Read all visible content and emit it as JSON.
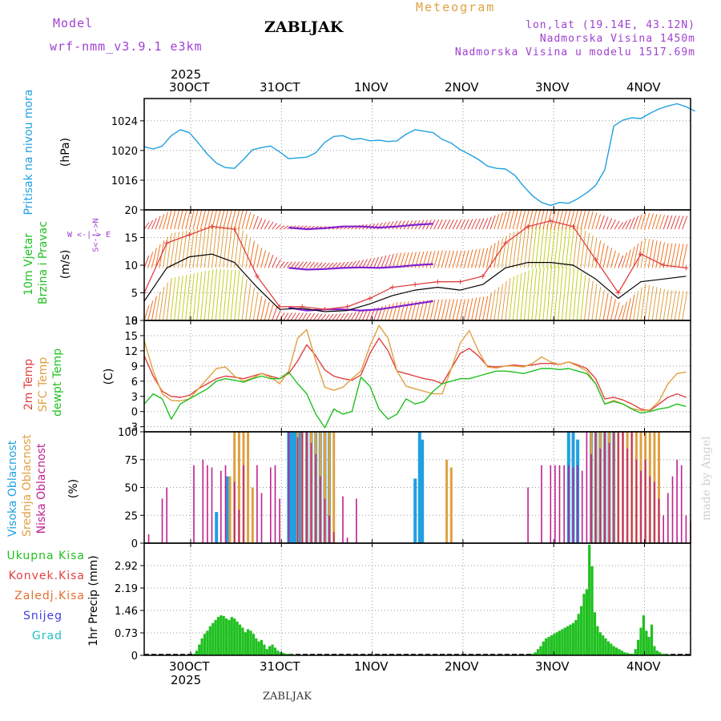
{
  "header": {
    "model_label": "Model",
    "model_name": "wrf-nmm_v3.9.1 e3km",
    "title": "ZABLJAK",
    "meteogram": "Meteogram",
    "lonlat": "lon,lat (19.14E, 43.12N)",
    "altitude": "Nadmorska Visina 1450m",
    "model_altitude": "Nadmorska Visina u modelu 1517.69m"
  },
  "footer": {
    "station": "ZABLJAK",
    "credit": "made by Angel"
  },
  "dates": {
    "labels": [
      "30OCT",
      "31OCT",
      "1NOV",
      "2NOV",
      "3NOV",
      "4NOV"
    ],
    "year": "2025"
  },
  "labels": {
    "p1_main": "Pritisak na nivou mora",
    "p1_unit": "(hPa)",
    "p2_main1": "10m Vjetar",
    "p2_main2": "Brzina i Pravac",
    "p2_unit": "(m/s)",
    "p2_dir": "W <-|-> E",
    "p2_dir2": "S<-|->N",
    "p3_l1": "2m Temp",
    "p3_l2": "SFC Temp",
    "p3_l3": "dewpt Temp",
    "p3_unit": "(C)",
    "p4_l1": "Visoka Oblacnost",
    "p4_l2": "Srednja Oblacnost",
    "p4_l3": "Niska Oblacnost",
    "p4_unit": "(%)",
    "p5_items": [
      "Ukupna Kisa",
      "Konvek.Kisa",
      "Zaledj.Kisa",
      "Snijeg",
      "Grad"
    ],
    "p5_unit": "1hr Precip (mm)"
  },
  "colors": {
    "label_blue": "#20a0e0",
    "label_green": "#20c020",
    "label_red": "#e04040",
    "label_orange": "#e0a040",
    "label_purple": "#a040d0",
    "label_magenta": "#c02090",
    "label_snow": "#4040e0",
    "label_hail": "#20c0c0"
  },
  "chart_data": [
    {
      "type": "line",
      "title": "Pritisak na nivou mora",
      "ylabel": "(hPa)",
      "ylim": [
        1012,
        1027
      ],
      "yticks": [
        "1016",
        "1020",
        "1024"
      ],
      "x_days": [
        0,
        0.1,
        0.2,
        0.3,
        0.4,
        0.5,
        0.6,
        0.7,
        0.8,
        0.9,
        1.0,
        1.1,
        1.2,
        1.3,
        1.4,
        1.5,
        1.6,
        1.7,
        1.8,
        1.9,
        2.0,
        2.1,
        2.2,
        2.3,
        2.4,
        2.5,
        2.6,
        2.7,
        2.8,
        2.9,
        3.0,
        3.1,
        3.2,
        3.3,
        3.4,
        3.5,
        3.6,
        3.7,
        3.8,
        3.9,
        4.0,
        4.1,
        4.2,
        4.3,
        4.4,
        4.5,
        4.6,
        4.7,
        4.8,
        4.9,
        5.0,
        5.1,
        5.2,
        5.3,
        5.4,
        5.5,
        5.6,
        5.7,
        5.8,
        5.9,
        6.0,
        6.1
      ],
      "series": [
        {
          "name": "MSLP",
          "color": "#20a0e0",
          "values": [
            1020.5,
            1020.2,
            1020.6,
            1022,
            1022.8,
            1022.4,
            1021,
            1019.5,
            1018.3,
            1017.7,
            1017.6,
            1018.8,
            1020.1,
            1020.4,
            1020.6,
            1019.8,
            1018.9,
            1019.0,
            1019.1,
            1019.7,
            1021.1,
            1021.9,
            1022.0,
            1021.5,
            1021.6,
            1021.3,
            1021.4,
            1021.2,
            1021.3,
            1022.2,
            1022.8,
            1022.6,
            1022.4,
            1021.5,
            1021.0,
            1020.1,
            1019.5,
            1018.8,
            1017.9,
            1017.6,
            1017.5,
            1016.7,
            1015.2,
            1013.9,
            1013.0,
            1012.6,
            1013.0,
            1012.9,
            1013.5,
            1014.3,
            1015.3,
            1017.4,
            1023.3,
            1024.1,
            1024.4,
            1024.3,
            1025.0,
            1025.6,
            1026.0,
            1026.3,
            1025.9,
            1025.3
          ]
        }
      ]
    },
    {
      "type": "line",
      "title": "10m Vjetar Brzina i Pravac",
      "ylabel": "(m/s)",
      "ylim": [
        0,
        20
      ],
      "yticks": [
        "0",
        "5",
        "10",
        "15",
        "20"
      ],
      "x_days": [
        0,
        0.25,
        0.5,
        0.75,
        1.0,
        1.25,
        1.5,
        1.75,
        2.0,
        2.25,
        2.5,
        2.75,
        3.0,
        3.25,
        3.5,
        3.75,
        4.0,
        4.25,
        4.5,
        4.75,
        5.0,
        5.25,
        5.5,
        5.75,
        6.0
      ],
      "series": [
        {
          "name": "Mean wind",
          "color": "#000000",
          "values": [
            3.5,
            9.5,
            11.5,
            12.0,
            10.5,
            6.0,
            2.0,
            2.2,
            1.6,
            1.8,
            3.0,
            4.5,
            5.5,
            6.0,
            5.5,
            6.5,
            9.5,
            10.5,
            10.5,
            10.0,
            7.5,
            4.0,
            7.0,
            7.5,
            8.0
          ]
        },
        {
          "name": "Gust",
          "color": "#e04040",
          "values": [
            5.0,
            14.0,
            15.5,
            17.0,
            16.5,
            8.0,
            2.5,
            2.5,
            2.0,
            2.5,
            4.0,
            6.0,
            6.5,
            7.0,
            7.0,
            8.0,
            14.0,
            17.0,
            18.0,
            17.0,
            11.0,
            5.0,
            12.0,
            10.0,
            9.5
          ]
        },
        {
          "name": "Direction arrows",
          "color": "#8020d0",
          "values": []
        }
      ]
    },
    {
      "type": "line",
      "title": "Temperature",
      "ylabel": "(C)",
      "ylim": [
        -4,
        18
      ],
      "yticks": [
        "-3",
        "0",
        "3",
        "6",
        "9",
        "12",
        "15",
        "18"
      ],
      "x_days": [
        0,
        0.1,
        0.2,
        0.3,
        0.4,
        0.5,
        0.6,
        0.7,
        0.8,
        0.9,
        1.0,
        1.1,
        1.2,
        1.3,
        1.4,
        1.5,
        1.6,
        1.7,
        1.8,
        1.9,
        2.0,
        2.1,
        2.2,
        2.3,
        2.4,
        2.5,
        2.6,
        2.7,
        2.8,
        2.9,
        3.0,
        3.1,
        3.2,
        3.3,
        3.4,
        3.5,
        3.6,
        3.7,
        3.8,
        3.9,
        4.0,
        4.1,
        4.2,
        4.3,
        4.4,
        4.5,
        4.6,
        4.7,
        4.8,
        4.9,
        5.0,
        5.1,
        5.2,
        5.3,
        5.4,
        5.5,
        5.6,
        5.7,
        5.8,
        5.9,
        6.0
      ],
      "series": [
        {
          "name": "2m Temp",
          "color": "#e04040",
          "values": [
            11,
            7,
            4,
            3,
            2.8,
            3.2,
            4.5,
            5.5,
            6.5,
            7,
            6.8,
            6.5,
            7,
            7.5,
            7,
            6.5,
            7.5,
            10,
            13.2,
            11,
            8.2,
            7,
            6.5,
            6.2,
            7.2,
            11.5,
            14.5,
            12,
            8,
            7.5,
            7,
            6.5,
            6.2,
            5.5,
            8.5,
            11.5,
            12.5,
            11,
            9,
            8.8,
            9,
            9.2,
            9.0,
            9.2,
            9.5,
            9.5,
            9.3,
            9.8,
            9.2,
            8.5,
            6.5,
            2.5,
            2.8,
            2.3,
            1.5,
            0.5,
            0.2,
            1.5,
            2.8,
            3.5,
            2.8
          ]
        },
        {
          "name": "SFC Temp",
          "color": "#e0a040",
          "values": [
            14,
            8,
            3.5,
            2.2,
            2.1,
            2.5,
            4.5,
            6.5,
            8.5,
            8.8,
            7.0,
            6.0,
            6.6,
            7.5,
            6.8,
            5.5,
            8.0,
            14.5,
            16.2,
            10.0,
            4.8,
            4.2,
            4.8,
            6.5,
            8.0,
            13.0,
            17.0,
            14.5,
            8.0,
            5.0,
            4.5,
            4.0,
            3.5,
            3.5,
            8.5,
            13.5,
            16.0,
            12.0,
            8.8,
            8.6,
            9.0,
            9.0,
            8.8,
            9.5,
            10.8,
            9.8,
            9.3,
            9.8,
            9.0,
            8.0,
            5.5,
            1.5,
            2.2,
            1.5,
            0.6,
            0.2,
            0.3,
            2.0,
            5.5,
            7.5,
            7.8
          ]
        },
        {
          "name": "dewpt Temp",
          "color": "#20c020",
          "values": [
            1.5,
            3.5,
            2.5,
            -1.5,
            1.5,
            2.5,
            3.5,
            4.5,
            6,
            6.5,
            6.2,
            5.8,
            6.5,
            7,
            6.5,
            6.5,
            7.8,
            5.5,
            3.5,
            -0.5,
            -3.2,
            0.5,
            -0.5,
            0,
            6.8,
            5,
            0.5,
            -1.5,
            -0.5,
            2.5,
            1.5,
            2,
            4,
            5.5,
            6,
            6.5,
            6.5,
            7,
            7.5,
            8,
            8,
            7.8,
            7.5,
            8,
            8.5,
            8.5,
            8.3,
            8.5,
            8,
            7.5,
            5.5,
            1.5,
            2.0,
            1.5,
            0.5,
            -0.3,
            0.0,
            0.5,
            0.8,
            1.5,
            1.0
          ]
        }
      ]
    },
    {
      "type": "bar",
      "title": "Oblacnost",
      "ylabel": "(%)",
      "ylim": [
        0,
        100
      ],
      "yticks": [
        "0",
        "25",
        "50",
        "75",
        "100"
      ],
      "series": [
        {
          "name": "Visoka Oblacnost",
          "color": "#20a0e0",
          "x_days": [
            0.8,
            0.92,
            1.6,
            1.62,
            1.64,
            1.66,
            1.68,
            1.72,
            1.8,
            1.85,
            1.9,
            1.95,
            2.0,
            2.05,
            3.0,
            3.05,
            3.08,
            4.7,
            4.75,
            4.8,
            4.95,
            5.0,
            5.05,
            5.1,
            5.15,
            5.2
          ],
          "values": [
            28,
            60,
            100,
            100,
            100,
            100,
            100,
            100,
            100,
            100,
            100,
            100,
            100,
            100,
            58,
            100,
            93,
            100,
            100,
            93,
            100,
            100,
            100,
            100,
            100,
            100
          ]
        },
        {
          "name": "Srednja Oblacnost",
          "color": "#e0a040",
          "x_days": [
            0.95,
            1.0,
            1.05,
            1.1,
            1.15,
            1.2,
            1.7,
            1.75,
            1.8,
            1.85,
            1.9,
            1.95,
            2.0,
            2.05,
            2.1,
            3.35,
            3.4,
            4.95,
            5.0,
            5.05,
            5.1,
            5.15,
            5.2,
            5.25,
            5.3,
            5.35,
            5.4,
            5.45,
            5.5,
            5.55,
            5.6,
            5.65,
            5.7
          ],
          "values": [
            60,
            100,
            100,
            100,
            100,
            50,
            100,
            100,
            100,
            100,
            100,
            100,
            100,
            100,
            100,
            75,
            68,
            100,
            100,
            100,
            100,
            100,
            100,
            100,
            100,
            100,
            100,
            100,
            100,
            100,
            100,
            100,
            100
          ]
        },
        {
          "name": "Niska Oblacnost",
          "color": "#c02090",
          "x_days": [
            0.05,
            0.2,
            0.25,
            0.55,
            0.65,
            0.7,
            0.75,
            0.85,
            0.9,
            1.0,
            1.05,
            1.1,
            1.25,
            1.3,
            1.4,
            1.45,
            1.5,
            1.6,
            1.7,
            1.75,
            1.8,
            1.85,
            1.9,
            1.95,
            2.0,
            2.05,
            2.1,
            2.2,
            2.25,
            2.35,
            4.25,
            4.4,
            4.5,
            4.55,
            4.6,
            4.65,
            4.7,
            4.75,
            4.8,
            4.85,
            4.9,
            4.95,
            5.0,
            5.05,
            5.1,
            5.15,
            5.2,
            5.25,
            5.3,
            5.35,
            5.4,
            5.45,
            5.5,
            5.55,
            5.6,
            5.65,
            5.7,
            5.75,
            5.8,
            5.85,
            5.9,
            5.95,
            6.0,
            6.05
          ],
          "values": [
            8,
            40,
            50,
            70,
            75,
            70,
            68,
            65,
            70,
            55,
            30,
            70,
            70,
            45,
            68,
            70,
            40,
            100,
            95,
            100,
            100,
            90,
            80,
            60,
            40,
            25,
            10,
            42,
            5,
            40,
            50,
            70,
            70,
            70,
            70,
            70,
            70,
            68,
            70,
            65,
            100,
            80,
            100,
            85,
            100,
            90,
            100,
            100,
            100,
            85,
            100,
            75,
            65,
            75,
            60,
            55,
            40,
            25,
            45,
            60,
            75,
            70,
            25,
            20
          ]
        }
      ]
    },
    {
      "type": "bar",
      "title": "1hr Precip",
      "ylabel": "1hr Precip (mm)",
      "ylim": [
        0,
        3.65
      ],
      "yticks": [
        "0",
        "0.73",
        "1.46",
        "2.19",
        "2.92"
      ],
      "series": [
        {
          "name": "Ukupna Kisa",
          "color": "#20c020",
          "x_days": [
            0.55,
            0.58,
            0.61,
            0.64,
            0.67,
            0.7,
            0.73,
            0.76,
            0.79,
            0.82,
            0.85,
            0.88,
            0.91,
            0.94,
            0.97,
            1.0,
            1.03,
            1.06,
            1.09,
            1.12,
            1.15,
            1.18,
            1.21,
            1.24,
            1.27,
            1.3,
            1.33,
            1.36,
            1.39,
            1.42,
            1.45,
            1.48,
            1.51,
            1.54,
            1.57,
            1.6,
            1.63,
            1.66,
            1.69,
            4.3,
            4.33,
            4.36,
            4.39,
            4.42,
            4.45,
            4.48,
            4.51,
            4.54,
            4.57,
            4.6,
            4.63,
            4.66,
            4.69,
            4.72,
            4.75,
            4.78,
            4.81,
            4.84,
            4.87,
            4.9,
            4.93,
            4.96,
            4.99,
            5.02,
            5.05,
            5.08,
            5.11,
            5.14,
            5.17,
            5.2,
            5.23,
            5.26,
            5.29,
            5.32,
            5.35,
            5.38,
            5.41,
            5.44,
            5.47,
            5.5,
            5.53,
            5.56,
            5.59,
            5.62,
            5.65,
            5.68,
            5.71,
            5.74,
            5.77,
            5.8,
            5.83
          ],
          "values": [
            0.05,
            0.15,
            0.35,
            0.55,
            0.7,
            0.8,
            0.95,
            1.05,
            1.15,
            1.25,
            1.3,
            1.28,
            1.2,
            1.15,
            1.25,
            1.2,
            1.1,
            1.0,
            0.9,
            0.75,
            0.85,
            0.8,
            0.7,
            0.55,
            0.45,
            0.5,
            0.35,
            0.2,
            0.3,
            0.35,
            0.25,
            0.15,
            0.1,
            0.08,
            0.05,
            0.05,
            0.03,
            0.02,
            0.02,
            0.05,
            0.1,
            0.2,
            0.3,
            0.45,
            0.55,
            0.6,
            0.65,
            0.7,
            0.75,
            0.8,
            0.85,
            0.9,
            0.95,
            1.0,
            1.05,
            1.15,
            1.35,
            1.6,
            2.0,
            2.15,
            3.6,
            2.9,
            1.4,
            0.95,
            0.75,
            0.65,
            0.55,
            0.45,
            0.38,
            0.3,
            0.25,
            0.2,
            0.15,
            0.1,
            0.08,
            0.05,
            0.05,
            0.2,
            0.5,
            0.9,
            1.3,
            0.8,
            0.6,
            1.0,
            0.3,
            0.15,
            0.1,
            0.05,
            0.05,
            0.03,
            0.02
          ]
        }
      ]
    }
  ]
}
